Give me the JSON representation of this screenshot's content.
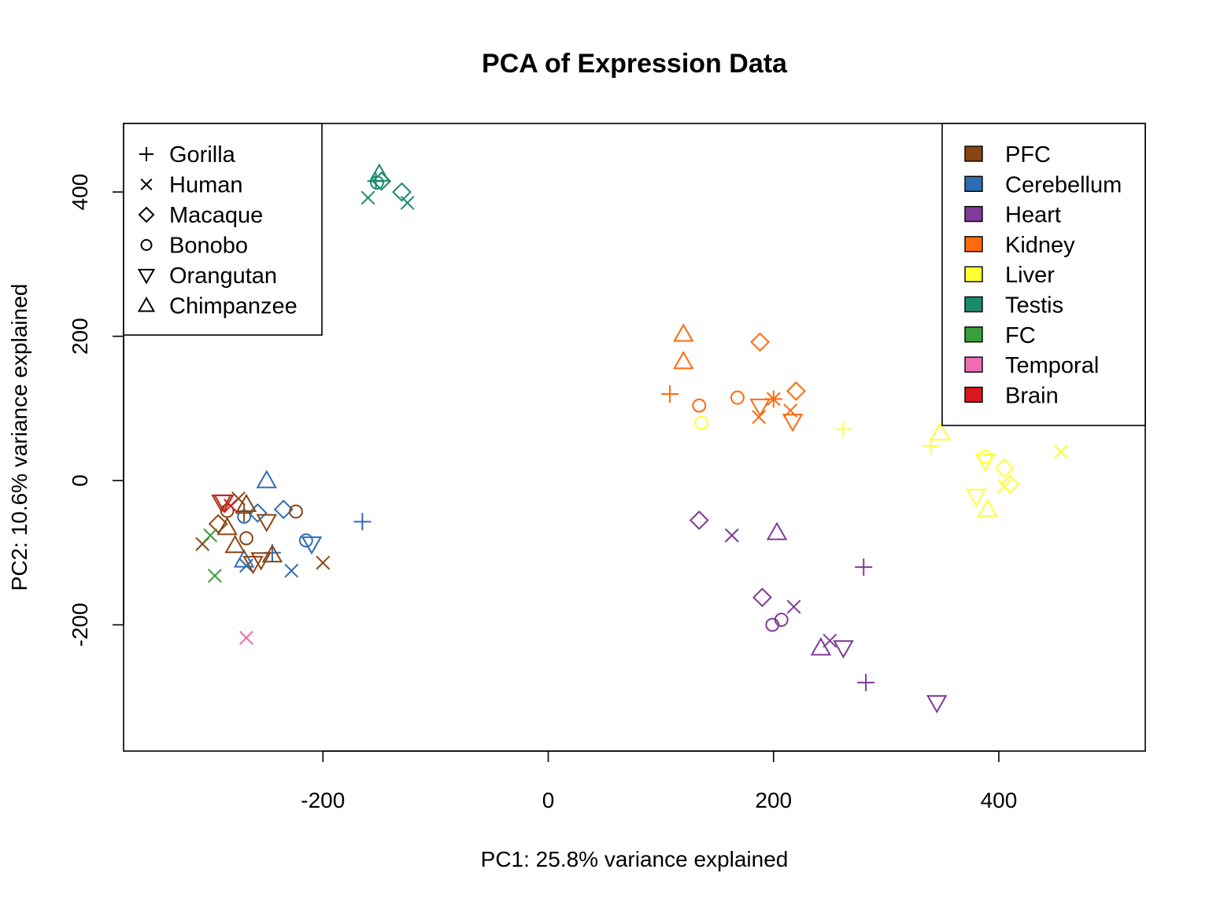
{
  "chart_data": {
    "type": "scatter",
    "title": "PCA of Expression Data",
    "xlabel": "PC1: 25.8% variance explained",
    "ylabel": "PC2: 10.6% variance explained",
    "xlim": [
      -377,
      530
    ],
    "ylim": [
      -375,
      495
    ],
    "xticks": [
      -200,
      0,
      200,
      400
    ],
    "yticks": [
      -200,
      0,
      200,
      400
    ],
    "grid": false,
    "legends": [
      {
        "placement": "top-left",
        "title": "",
        "entries": [
          {
            "label": "Gorilla",
            "shape": "plus"
          },
          {
            "label": "Human",
            "shape": "cross"
          },
          {
            "label": "Macaque",
            "shape": "diamond"
          },
          {
            "label": "Bonobo",
            "shape": "circle"
          },
          {
            "label": "Orangutan",
            "shape": "triangle-down"
          },
          {
            "label": "Chimpanzee",
            "shape": "triangle-up"
          }
        ]
      },
      {
        "placement": "top-right",
        "title": "",
        "entries": [
          {
            "label": "PFC",
            "color": "#8B4513"
          },
          {
            "label": "Cerebellum",
            "color": "#2E6DB4"
          },
          {
            "label": "Heart",
            "color": "#7F3A9A"
          },
          {
            "label": "Kidney",
            "color": "#FF6A0D"
          },
          {
            "label": "Liver",
            "color": "#FFFF33"
          },
          {
            "label": "Testis",
            "color": "#1B8A6B"
          },
          {
            "label": "FC",
            "color": "#3A9E3A"
          },
          {
            "label": "Temporal",
            "color": "#F06CB0"
          },
          {
            "label": "Brain",
            "color": "#D7191C"
          }
        ]
      }
    ],
    "shapes": {
      "Gorilla": "plus",
      "Human": "cross",
      "Macaque": "diamond",
      "Bonobo": "circle",
      "Orangutan": "triangle-down",
      "Chimpanzee": "triangle-up"
    },
    "colors": {
      "PFC": "#8B4513",
      "Cerebellum": "#2E6DB4",
      "Heart": "#7F3A9A",
      "Kidney": "#FF6A0D",
      "Liver": "#FFFF33",
      "Testis": "#1B8A6B",
      "FC": "#3A9E3A",
      "Temporal": "#F06CB0",
      "Brain": "#D7191C"
    },
    "points": [
      {
        "x": -150,
        "y": 425,
        "species": "Chimpanzee",
        "tissue": "Testis"
      },
      {
        "x": -153,
        "y": 415,
        "species": "Gorilla",
        "tissue": "Testis"
      },
      {
        "x": -152,
        "y": 413,
        "species": "Bonobo",
        "tissue": "Testis"
      },
      {
        "x": -148,
        "y": 415,
        "species": "Macaque",
        "tissue": "Testis"
      },
      {
        "x": -130,
        "y": 400,
        "species": "Macaque",
        "tissue": "Testis"
      },
      {
        "x": -160,
        "y": 392,
        "species": "Human",
        "tissue": "Testis"
      },
      {
        "x": -125,
        "y": 385,
        "species": "Human",
        "tissue": "Testis"
      },
      {
        "x": 120,
        "y": 203,
        "species": "Chimpanzee",
        "tissue": "Kidney"
      },
      {
        "x": 120,
        "y": 165,
        "species": "Chimpanzee",
        "tissue": "Kidney"
      },
      {
        "x": 108,
        "y": 120,
        "species": "Gorilla",
        "tissue": "Kidney"
      },
      {
        "x": 134,
        "y": 104,
        "species": "Bonobo",
        "tissue": "Kidney"
      },
      {
        "x": 168,
        "y": 115,
        "species": "Bonobo",
        "tissue": "Kidney"
      },
      {
        "x": 188,
        "y": 192,
        "species": "Macaque",
        "tissue": "Kidney"
      },
      {
        "x": 220,
        "y": 124,
        "species": "Macaque",
        "tissue": "Kidney"
      },
      {
        "x": 188,
        "y": 103,
        "species": "Orangutan",
        "tissue": "Kidney"
      },
      {
        "x": 200,
        "y": 113,
        "species": "Gorilla",
        "tissue": "Kidney"
      },
      {
        "x": 200,
        "y": 113,
        "species": "Human",
        "tissue": "Kidney"
      },
      {
        "x": 215,
        "y": 97,
        "species": "Human",
        "tissue": "Kidney"
      },
      {
        "x": 187,
        "y": 88,
        "species": "Human",
        "tissue": "Kidney"
      },
      {
        "x": 217,
        "y": 82,
        "species": "Orangutan",
        "tissue": "Kidney"
      },
      {
        "x": 136,
        "y": 80,
        "species": "Bonobo",
        "tissue": "Liver"
      },
      {
        "x": 262,
        "y": 71,
        "species": "Gorilla",
        "tissue": "Liver"
      },
      {
        "x": 348,
        "y": 66,
        "species": "Chimpanzee",
        "tissue": "Liver"
      },
      {
        "x": 340,
        "y": 48,
        "species": "Gorilla",
        "tissue": "Liver"
      },
      {
        "x": 455,
        "y": 40,
        "species": "Human",
        "tissue": "Liver"
      },
      {
        "x": 388,
        "y": 33,
        "species": "Bonobo",
        "tissue": "Liver"
      },
      {
        "x": 388,
        "y": 27,
        "species": "Orangutan",
        "tissue": "Liver"
      },
      {
        "x": 405,
        "y": 17,
        "species": "Macaque",
        "tissue": "Liver"
      },
      {
        "x": 410,
        "y": -5,
        "species": "Macaque",
        "tissue": "Liver"
      },
      {
        "x": 405,
        "y": -8,
        "species": "Human",
        "tissue": "Liver"
      },
      {
        "x": 380,
        "y": -22,
        "species": "Orangutan",
        "tissue": "Liver"
      },
      {
        "x": 390,
        "y": -40,
        "species": "Chimpanzee",
        "tissue": "Liver"
      },
      {
        "x": 134,
        "y": -55,
        "species": "Macaque",
        "tissue": "Heart"
      },
      {
        "x": 163,
        "y": -76,
        "species": "Human",
        "tissue": "Heart"
      },
      {
        "x": 203,
        "y": -72,
        "species": "Chimpanzee",
        "tissue": "Heart"
      },
      {
        "x": 280,
        "y": -120,
        "species": "Gorilla",
        "tissue": "Heart"
      },
      {
        "x": 190,
        "y": -162,
        "species": "Macaque",
        "tissue": "Heart"
      },
      {
        "x": 218,
        "y": -175,
        "species": "Human",
        "tissue": "Heart"
      },
      {
        "x": 207,
        "y": -193,
        "species": "Bonobo",
        "tissue": "Heart"
      },
      {
        "x": 199,
        "y": -200,
        "species": "Bonobo",
        "tissue": "Heart"
      },
      {
        "x": 250,
        "y": -222,
        "species": "Human",
        "tissue": "Heart"
      },
      {
        "x": 242,
        "y": -232,
        "species": "Chimpanzee",
        "tissue": "Heart"
      },
      {
        "x": 262,
        "y": -232,
        "species": "Orangutan",
        "tissue": "Heart"
      },
      {
        "x": 282,
        "y": -280,
        "species": "Gorilla",
        "tissue": "Heart"
      },
      {
        "x": 345,
        "y": -308,
        "species": "Orangutan",
        "tissue": "Heart"
      },
      {
        "x": -165,
        "y": -57,
        "species": "Gorilla",
        "tissue": "Cerebellum"
      },
      {
        "x": -250,
        "y": 0,
        "species": "Chimpanzee",
        "tissue": "Cerebellum"
      },
      {
        "x": -235,
        "y": -40,
        "species": "Macaque",
        "tissue": "Cerebellum"
      },
      {
        "x": -258,
        "y": -45,
        "species": "Macaque",
        "tissue": "Cerebellum"
      },
      {
        "x": -270,
        "y": -50,
        "species": "Bonobo",
        "tissue": "Cerebellum"
      },
      {
        "x": -215,
        "y": -83,
        "species": "Bonobo",
        "tissue": "Cerebellum"
      },
      {
        "x": -210,
        "y": -88,
        "species": "Orangutan",
        "tissue": "Cerebellum"
      },
      {
        "x": -245,
        "y": -100,
        "species": "Gorilla",
        "tissue": "Cerebellum"
      },
      {
        "x": -270,
        "y": -110,
        "species": "Chimpanzee",
        "tissue": "Cerebellum"
      },
      {
        "x": -268,
        "y": -118,
        "species": "Human",
        "tissue": "Cerebellum"
      },
      {
        "x": -228,
        "y": -125,
        "species": "Human",
        "tissue": "Cerebellum"
      },
      {
        "x": -290,
        "y": -30,
        "species": "Orangutan",
        "tissue": "PFC"
      },
      {
        "x": -275,
        "y": -25,
        "species": "Human",
        "tissue": "PFC"
      },
      {
        "x": -268,
        "y": -33,
        "species": "Chimpanzee",
        "tissue": "PFC"
      },
      {
        "x": -270,
        "y": -45,
        "species": "Gorilla",
        "tissue": "PFC"
      },
      {
        "x": -285,
        "y": -42,
        "species": "Bonobo",
        "tissue": "PFC"
      },
      {
        "x": -224,
        "y": -43,
        "species": "Bonobo",
        "tissue": "PFC"
      },
      {
        "x": -250,
        "y": -57,
        "species": "Orangutan",
        "tissue": "PFC"
      },
      {
        "x": -293,
        "y": -60,
        "species": "Macaque",
        "tissue": "PFC"
      },
      {
        "x": -285,
        "y": -65,
        "species": "Chimpanzee",
        "tissue": "PFC"
      },
      {
        "x": -268,
        "y": -80,
        "species": "Bonobo",
        "tissue": "PFC"
      },
      {
        "x": -307,
        "y": -88,
        "species": "Human",
        "tissue": "PFC"
      },
      {
        "x": -278,
        "y": -90,
        "species": "Chimpanzee",
        "tissue": "PFC"
      },
      {
        "x": -245,
        "y": -103,
        "species": "Chimpanzee",
        "tissue": "PFC"
      },
      {
        "x": -255,
        "y": -110,
        "species": "Orangutan",
        "tissue": "PFC"
      },
      {
        "x": -262,
        "y": -115,
        "species": "Orangutan",
        "tissue": "PFC"
      },
      {
        "x": -200,
        "y": -114,
        "species": "Human",
        "tissue": "PFC"
      },
      {
        "x": -288,
        "y": -30,
        "species": "Orangutan",
        "tissue": "Brain"
      },
      {
        "x": -282,
        "y": -35,
        "species": "Human",
        "tissue": "Brain"
      },
      {
        "x": -300,
        "y": -76,
        "species": "Human",
        "tissue": "FC"
      },
      {
        "x": -296,
        "y": -132,
        "species": "Human",
        "tissue": "FC"
      },
      {
        "x": -268,
        "y": -218,
        "species": "Human",
        "tissue": "Temporal"
      }
    ]
  }
}
